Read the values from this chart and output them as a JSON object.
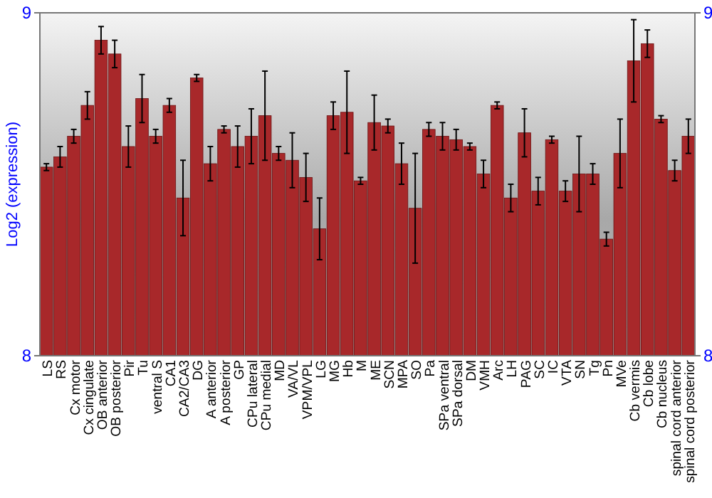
{
  "chart_data": {
    "type": "bar",
    "ylabel": "Log2 (expression)",
    "categories": [
      "LS",
      "RS",
      "Cx motor",
      "Cx cingulate",
      "OB anterior",
      "OB posterior",
      "Pir",
      "Tu",
      "ventral S",
      "CA1",
      "CA2/CA3",
      "DG",
      "A anterior",
      "A posterior",
      "GP",
      "CPu lateral",
      "CPu medial",
      "MD",
      "VA/VL",
      "VPM/VPL",
      "LG",
      "MG",
      "Hb",
      "M",
      "ME",
      "SCN",
      "MPA",
      "SO",
      "Pa",
      "SPa ventral",
      "SPa dorsal",
      "DM",
      "VMH",
      "Arc",
      "LH",
      "PAG",
      "SC",
      "IC",
      "VTA",
      "SN",
      "Tg",
      "Pn",
      "MVe",
      "Cb vermis",
      "Cb lobe",
      "Cb nucleus",
      "spinal cord anterior",
      "spinal cord posterior"
    ],
    "values": [
      8.55,
      8.58,
      8.64,
      8.73,
      8.92,
      8.88,
      8.61,
      8.75,
      8.64,
      8.73,
      8.46,
      8.81,
      8.56,
      8.66,
      8.61,
      8.64,
      8.7,
      8.59,
      8.57,
      8.52,
      8.37,
      8.7,
      8.71,
      8.51,
      8.68,
      8.67,
      8.56,
      8.43,
      8.66,
      8.64,
      8.63,
      8.61,
      8.53,
      8.73,
      8.46,
      8.65,
      8.48,
      8.63,
      8.48,
      8.53,
      8.53,
      8.34,
      8.59,
      8.86,
      8.91,
      8.69,
      8.54,
      8.64
    ],
    "errors": [
      0.01,
      0.03,
      0.02,
      0.04,
      0.04,
      0.04,
      0.06,
      0.07,
      0.02,
      0.02,
      0.11,
      0.01,
      0.05,
      0.01,
      0.06,
      0.08,
      0.13,
      0.02,
      0.08,
      0.07,
      0.09,
      0.04,
      0.12,
      0.01,
      0.08,
      0.02,
      0.06,
      0.16,
      0.02,
      0.04,
      0.03,
      0.01,
      0.04,
      0.01,
      0.04,
      0.07,
      0.04,
      0.01,
      0.03,
      0.11,
      0.03,
      0.02,
      0.1,
      0.12,
      0.04,
      0.01,
      0.03,
      0.05
    ],
    "color": "#a8282a",
    "ylim": [
      8,
      9
    ],
    "yticks": [
      8,
      9
    ],
    "y2lim": [
      8,
      9
    ],
    "y2ticks": [
      8,
      9
    ]
  }
}
